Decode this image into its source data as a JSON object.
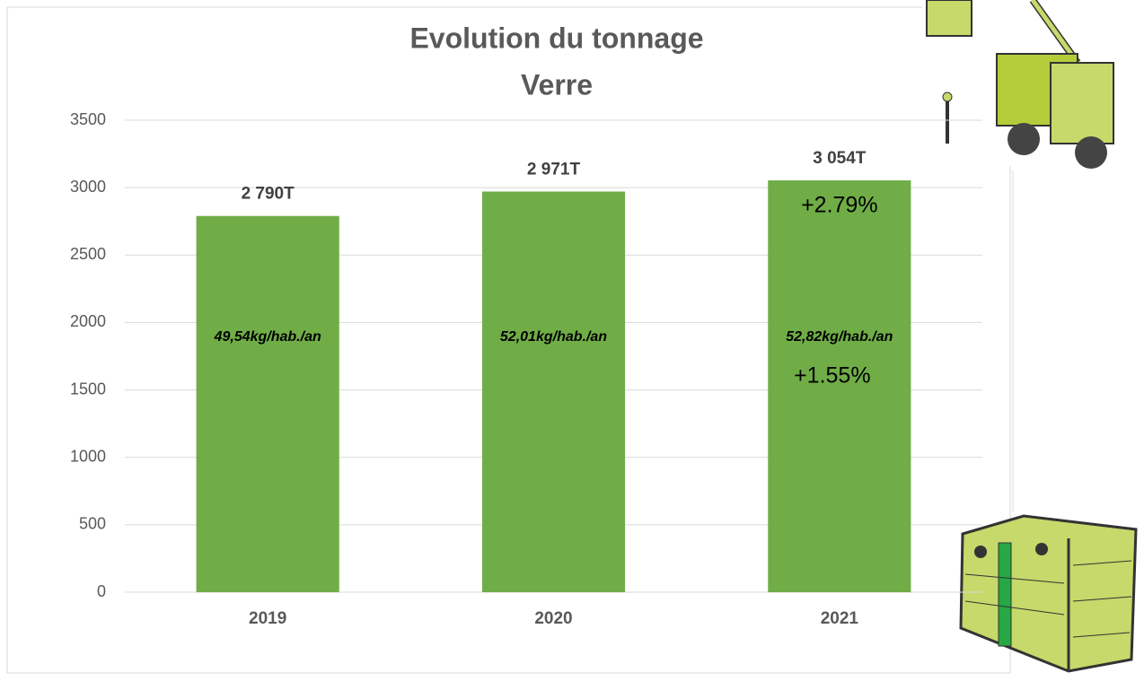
{
  "chart_data": {
    "type": "bar",
    "title": "Evolution du tonnage",
    "subtitle": "Verre",
    "categories": [
      "2019",
      "2020",
      "2021"
    ],
    "values": [
      2790,
      2971,
      3054
    ],
    "value_labels": [
      "2 790T",
      "2 971T",
      "3 054T"
    ],
    "inner_labels": [
      "49,54kg/hab./an",
      "52,01kg/hab./an",
      "52,82kg/hab./an"
    ],
    "annotations": [
      "+2.79%",
      "+1.55%"
    ],
    "color": "#70ad47",
    "ylim": [
      0,
      3500
    ],
    "yticks": [
      0,
      500,
      1000,
      1500,
      2000,
      2500,
      3000,
      3500
    ],
    "grid": true
  }
}
